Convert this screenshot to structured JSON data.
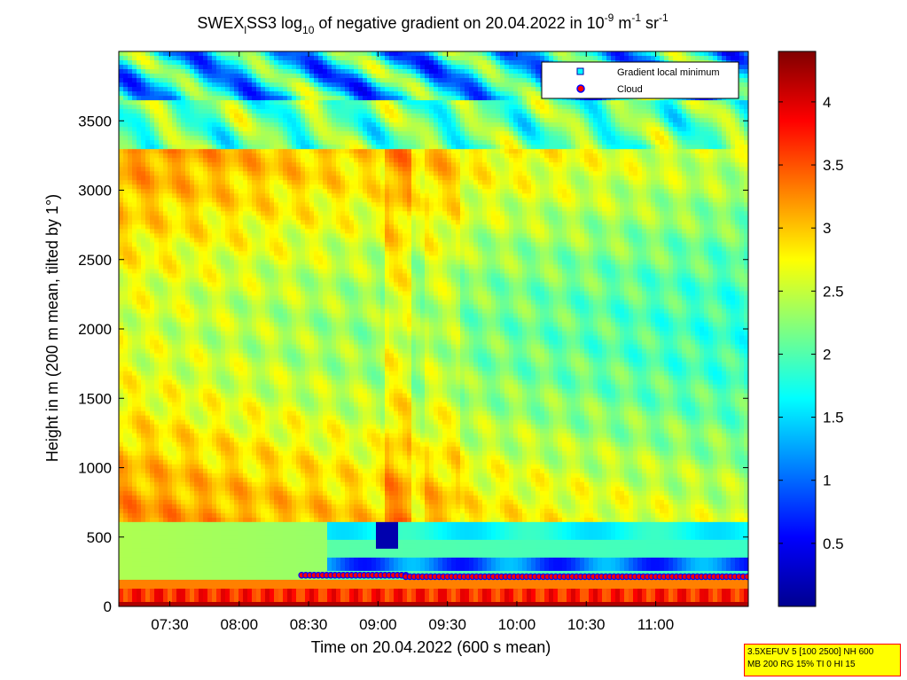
{
  "chart_data": {
    "type": "heatmap",
    "title": {
      "part1": "SWEX",
      "part1_sub": "l",
      "part2": "SS3 log",
      "part2_sub": "10",
      "part3": " of negative gradient on 20.04.2022 in 10",
      "exp1": "-9",
      "part4": " m",
      "exp2": "-1",
      "part5": " sr",
      "exp3": "-1"
    },
    "xlabel": "Time on 20.04.2022 (600 s mean)",
    "ylabel": "Height in m (200 m mean, tilted by 1°)",
    "x_ticks": [
      "07:30",
      "08:00",
      "08:30",
      "09:00",
      "09:30",
      "10:00",
      "10:30",
      "11:00"
    ],
    "x_tick_hours": [
      7.5,
      8.0,
      8.5,
      9.0,
      9.5,
      10.0,
      10.5,
      11.0
    ],
    "xlim_hours": [
      7.133,
      11.667
    ],
    "y_ticks": [
      "0",
      "500",
      "1000",
      "1500",
      "2000",
      "2500",
      "3000",
      "3500"
    ],
    "y_tick_values": [
      0,
      500,
      1000,
      1500,
      2000,
      2500,
      3000,
      3500
    ],
    "ylim": [
      0,
      4000
    ],
    "colorbar": {
      "ticks": [
        "0.5",
        "1",
        "1.5",
        "2",
        "2.5",
        "3",
        "3.5",
        "4"
      ],
      "tick_values": [
        0.5,
        1,
        1.5,
        2,
        2.5,
        3,
        3.5,
        4
      ],
      "range": [
        0,
        4.4
      ],
      "colormap": "jet"
    },
    "legend": {
      "placement": "top-right",
      "entries": [
        {
          "label": "Gradient local minimum",
          "marker": "square",
          "color": "#00ffff"
        },
        {
          "label": "Cloud",
          "marker": "circle",
          "color": "#ff0000"
        }
      ]
    },
    "annotation": {
      "line1": "3.5XEFUV 5 [100 2500] NH 600",
      "line2": "MB 200 RG 15% TI 0 HI 15"
    },
    "cloud_layers_m": [
      {
        "x_start_hours": 8.45,
        "x_end_hours": 9.2,
        "y": 225
      },
      {
        "x_start_hours": 9.2,
        "x_end_hours": 11.667,
        "y": 215
      }
    ]
  }
}
